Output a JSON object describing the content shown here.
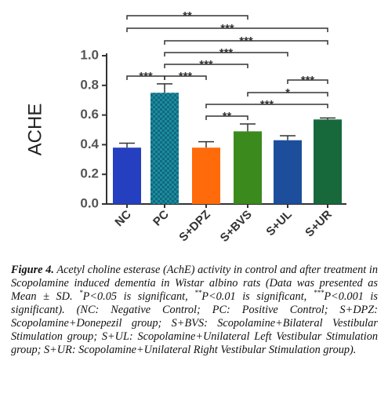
{
  "chart_data": {
    "type": "bar",
    "y_label": "ACHE",
    "categories": [
      "NC",
      "PC",
      "S+DPZ",
      "S+BVS",
      "S+UL",
      "S+UR"
    ],
    "values": [
      0.38,
      0.75,
      0.38,
      0.49,
      0.43,
      0.57
    ],
    "errors": [
      0.03,
      0.06,
      0.04,
      0.05,
      0.03,
      0.01
    ],
    "colors": [
      "#2440c0",
      "#1b8ca0",
      "#ff6a0a",
      "#3b8a1e",
      "#1c4e9c",
      "#17693c"
    ],
    "ylim": [
      0,
      1
    ],
    "yticks": [
      {
        "value": 0,
        "label": "0.0"
      },
      {
        "value": 0.2,
        "label": "0.2"
      },
      {
        "value": 0.4,
        "label": "0.4"
      },
      {
        "value": 0.6,
        "label": "0.6"
      },
      {
        "value": 0.8,
        "label": "0.8"
      },
      {
        "value": 1,
        "label": "1.0"
      }
    ],
    "significance": [
      {
        "from": "NC",
        "to": "S+BVS",
        "label": "**"
      },
      {
        "from": "NC",
        "to": "S+UR",
        "label": "***"
      },
      {
        "from": "PC",
        "to": "S+UR",
        "label": "***"
      },
      {
        "from": "PC",
        "to": "S+UL",
        "label": "***"
      },
      {
        "from": "PC",
        "to": "S+BVS",
        "label": "***"
      },
      {
        "from": "NC",
        "to": "PC",
        "label": "***"
      },
      {
        "from": "PC",
        "to": "S+DPZ",
        "label": "***"
      },
      {
        "from": "S+UL",
        "to": "S+UR",
        "label": "***"
      },
      {
        "from": "S+BVS",
        "to": "S+UR",
        "label": "*"
      },
      {
        "from": "S+DPZ",
        "to": "S+UR",
        "label": "***"
      },
      {
        "from": "S+DPZ",
        "to": "S+BVS",
        "label": "**"
      }
    ]
  },
  "caption": {
    "label": "Figure 4.",
    "parts": [
      " Acetyl choline esterase (AchE) activity in control and after treatment in Scopolamine induced dementia in Wistar albino rats (Data was presented as Mean ± SD. ",
      "P<0.05 is significant, ",
      "P<0.01 is significant, ",
      "P<0.001 is significant). (NC: Negative Control; PC: Positive Control; S+DPZ: Scopolamine+Donepezil group; S+BVS: Scopolamine+Bilateral Vestibular Stimulation group; S+UL: Scopolamine+Unilateral Left Vestibular Stimulation group; S+UR: Scopolamine+Unilateral Right Vestibular Stimulation group)."
    ],
    "superscripts": [
      "*",
      "**",
      "***"
    ]
  }
}
